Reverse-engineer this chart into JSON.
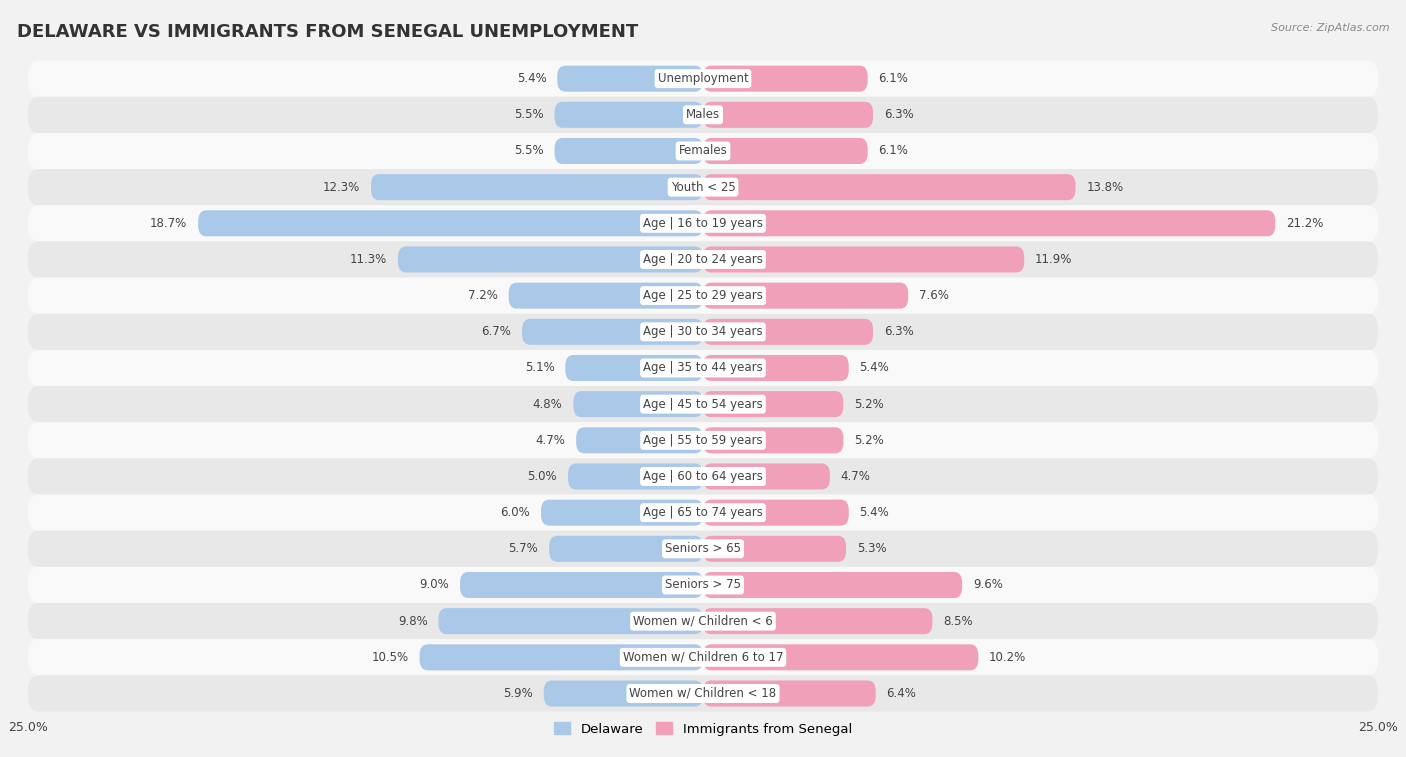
{
  "title": "DELAWARE VS IMMIGRANTS FROM SENEGAL UNEMPLOYMENT",
  "source": "Source: ZipAtlas.com",
  "categories": [
    "Unemployment",
    "Males",
    "Females",
    "Youth < 25",
    "Age | 16 to 19 years",
    "Age | 20 to 24 years",
    "Age | 25 to 29 years",
    "Age | 30 to 34 years",
    "Age | 35 to 44 years",
    "Age | 45 to 54 years",
    "Age | 55 to 59 years",
    "Age | 60 to 64 years",
    "Age | 65 to 74 years",
    "Seniors > 65",
    "Seniors > 75",
    "Women w/ Children < 6",
    "Women w/ Children 6 to 17",
    "Women w/ Children < 18"
  ],
  "delaware": [
    5.4,
    5.5,
    5.5,
    12.3,
    18.7,
    11.3,
    7.2,
    6.7,
    5.1,
    4.8,
    4.7,
    5.0,
    6.0,
    5.7,
    9.0,
    9.8,
    10.5,
    5.9
  ],
  "senegal": [
    6.1,
    6.3,
    6.1,
    13.8,
    21.2,
    11.9,
    7.6,
    6.3,
    5.4,
    5.2,
    5.2,
    4.7,
    5.4,
    5.3,
    9.6,
    8.5,
    10.2,
    6.4
  ],
  "xlim": 25.0,
  "delaware_color": "#aac8e8",
  "senegal_color": "#f0a0b8",
  "delaware_label": "Delaware",
  "senegal_label": "Immigrants from Senegal",
  "background_color": "#f2f2f2",
  "row_color_even": "#f9f9f9",
  "row_color_odd": "#e8e8e8",
  "bar_height": 0.72,
  "title_fontsize": 13,
  "label_fontsize": 8.5,
  "value_fontsize": 8.5,
  "source_fontsize": 8
}
